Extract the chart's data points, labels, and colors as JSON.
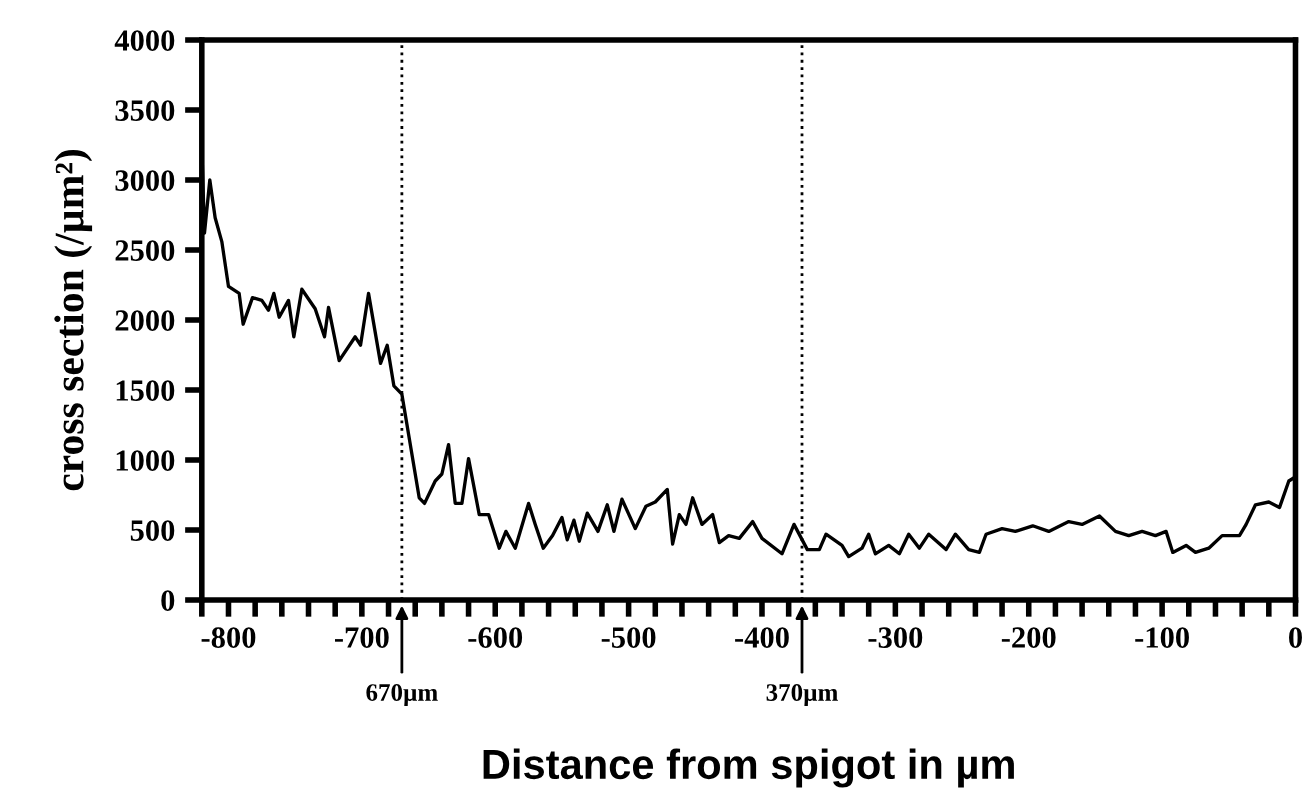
{
  "chart_data": {
    "type": "line",
    "xlabel": "Distance from spigot in µm",
    "ylabel": "cross section (/µm²)",
    "xlim": [
      -820,
      0
    ],
    "ylim": [
      0,
      4000
    ],
    "xticks": [
      {
        "value": -820,
        "label": null
      },
      -800,
      {
        "value": -780,
        "label": null
      },
      {
        "value": -760,
        "label": null
      },
      {
        "value": -740,
        "label": null
      },
      {
        "value": -720,
        "label": null
      },
      -700,
      {
        "value": -680,
        "label": null
      },
      {
        "value": -660,
        "label": null
      },
      {
        "value": -640,
        "label": null
      },
      {
        "value": -620,
        "label": null
      },
      -600,
      {
        "value": -580,
        "label": null
      },
      {
        "value": -560,
        "label": null
      },
      {
        "value": -540,
        "label": null
      },
      {
        "value": -520,
        "label": null
      },
      -500,
      {
        "value": -480,
        "label": null
      },
      {
        "value": -460,
        "label": null
      },
      {
        "value": -440,
        "label": null
      },
      {
        "value": -420,
        "label": null
      },
      -400,
      {
        "value": -380,
        "label": null
      },
      {
        "value": -360,
        "label": null
      },
      {
        "value": -340,
        "label": null
      },
      {
        "value": -320,
        "label": null
      },
      -300,
      {
        "value": -280,
        "label": null
      },
      {
        "value": -260,
        "label": null
      },
      {
        "value": -240,
        "label": null
      },
      {
        "value": -220,
        "label": null
      },
      -200,
      {
        "value": -180,
        "label": null
      },
      {
        "value": -160,
        "label": null
      },
      {
        "value": -140,
        "label": null
      },
      {
        "value": -120,
        "label": null
      },
      -100,
      {
        "value": -80,
        "label": null
      },
      {
        "value": -60,
        "label": null
      },
      {
        "value": -40,
        "label": null
      },
      {
        "value": -20,
        "label": null
      },
      0
    ],
    "yticks": [
      0,
      500,
      1000,
      1500,
      2000,
      2500,
      3000,
      3500,
      4000
    ],
    "grid": false,
    "marker": "none",
    "line_style": "solid",
    "ref_lines": [
      {
        "axis": "x",
        "value": -670,
        "label": "670µm",
        "line_style": "dotted",
        "color": "#000000"
      },
      {
        "axis": "x",
        "value": -370,
        "label": "370µm",
        "line_style": "dotted",
        "color": "#000000"
      }
    ],
    "series": [
      {
        "color": "#000000",
        "x": [
          -820,
          -818,
          -814,
          -810,
          -805,
          -800,
          -792,
          -789,
          -782,
          -775,
          -770,
          -766,
          -762,
          -755,
          -751,
          -745,
          -735,
          -728,
          -725,
          -717,
          -705,
          -701,
          -695,
          -686,
          -681,
          -676,
          -670,
          -657,
          -653,
          -645,
          -640,
          -635,
          -630,
          -625,
          -620,
          -612,
          -605,
          -597,
          -592,
          -585,
          -575,
          -570,
          -564,
          -557,
          -550,
          -546,
          -541,
          -537,
          -531,
          -523,
          -516,
          -511,
          -505,
          -495,
          -487,
          -480,
          -471,
          -467,
          -462,
          -457,
          -452,
          -445,
          -437,
          -432,
          -425,
          -417,
          -407,
          -400,
          -385,
          -376,
          -366,
          -357,
          -352,
          -340,
          -335,
          -325,
          -320,
          -315,
          -305,
          -297,
          -290,
          -282,
          -275,
          -262,
          -255,
          -245,
          -237,
          -232,
          -220,
          -210,
          -197,
          -185,
          -170,
          -160,
          -147,
          -135,
          -125,
          -115,
          -105,
          -97,
          -92,
          -82,
          -75,
          -65,
          -55,
          -42,
          -37,
          -30,
          -20,
          -12,
          -5,
          0
        ],
        "values": [
          3240,
          2620,
          3000,
          2730,
          2560,
          2240,
          2190,
          1970,
          2160,
          2140,
          2070,
          2190,
          2020,
          2140,
          1880,
          2220,
          2080,
          1880,
          2090,
          1710,
          1880,
          1820,
          2190,
          1690,
          1820,
          1530,
          1470,
          730,
          690,
          850,
          900,
          1110,
          690,
          690,
          1010,
          610,
          610,
          370,
          490,
          370,
          690,
          540,
          370,
          460,
          590,
          430,
          570,
          420,
          620,
          490,
          680,
          490,
          720,
          510,
          670,
          700,
          790,
          400,
          610,
          540,
          730,
          540,
          610,
          410,
          460,
          440,
          560,
          440,
          330,
          540,
          360,
          360,
          470,
          390,
          310,
          370,
          470,
          330,
          390,
          330,
          470,
          370,
          470,
          360,
          470,
          360,
          340,
          470,
          510,
          490,
          530,
          490,
          560,
          540,
          600,
          490,
          460,
          490,
          460,
          490,
          340,
          390,
          340,
          370,
          460,
          460,
          540,
          680,
          700,
          660,
          850,
          880
        ]
      }
    ]
  }
}
